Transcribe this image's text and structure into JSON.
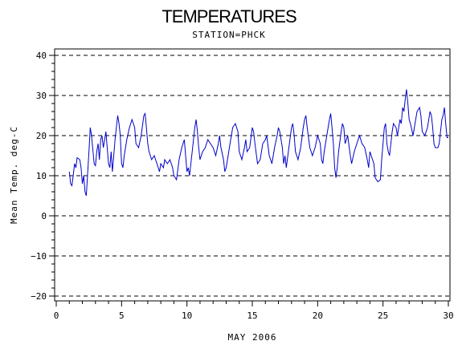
{
  "chart_data": {
    "type": "line",
    "title": "TEMPERATURES",
    "subtitle": "STATION=PHCK",
    "xlabel": "MAY 2006",
    "ylabel": "Mean Temp. deg-C",
    "xlim": [
      0,
      30
    ],
    "ylim": [
      -20,
      40
    ],
    "x_major_ticks": [
      0,
      5,
      10,
      15,
      20,
      25,
      30
    ],
    "y_major_ticks": [
      -20,
      -10,
      0,
      10,
      20,
      30,
      40
    ],
    "y_tick_labels": [
      "−20",
      "−10",
      "0",
      "10",
      "20",
      "30",
      "40"
    ],
    "x_tick_labels": [
      "0",
      "5",
      "10",
      "15",
      "20",
      "25",
      "30"
    ],
    "grid": "horizontal dashed at major y ticks",
    "line_color": "#0000cc",
    "series": [
      {
        "values": [
          [
            1.0,
            11
          ],
          [
            1.1,
            8
          ],
          [
            1.2,
            7.5
          ],
          [
            1.3,
            10
          ],
          [
            1.4,
            13
          ],
          [
            1.5,
            12
          ],
          [
            1.6,
            14.5
          ],
          [
            1.8,
            14
          ],
          [
            1.9,
            12
          ],
          [
            2.0,
            8
          ],
          [
            2.1,
            10
          ],
          [
            2.2,
            6
          ],
          [
            2.3,
            5
          ],
          [
            2.5,
            16
          ],
          [
            2.6,
            22
          ],
          [
            2.7,
            20
          ],
          [
            2.9,
            13
          ],
          [
            3.0,
            12.5
          ],
          [
            3.1,
            16
          ],
          [
            3.2,
            18
          ],
          [
            3.3,
            14
          ],
          [
            3.4,
            19
          ],
          [
            3.5,
            20
          ],
          [
            3.6,
            17
          ],
          [
            3.8,
            21
          ],
          [
            3.9,
            17
          ],
          [
            4.0,
            13
          ],
          [
            4.1,
            12
          ],
          [
            4.2,
            16
          ],
          [
            4.3,
            11
          ],
          [
            4.5,
            19
          ],
          [
            4.6,
            22
          ],
          [
            4.7,
            25
          ],
          [
            4.8,
            23
          ],
          [
            4.9,
            20
          ],
          [
            5.0,
            13
          ],
          [
            5.1,
            12
          ],
          [
            5.2,
            15
          ],
          [
            5.4,
            19
          ],
          [
            5.6,
            22
          ],
          [
            5.8,
            24
          ],
          [
            6.0,
            22
          ],
          [
            6.1,
            18
          ],
          [
            6.3,
            17
          ],
          [
            6.5,
            20
          ],
          [
            6.7,
            25
          ],
          [
            6.8,
            25.5
          ],
          [
            6.9,
            22
          ],
          [
            7.0,
            18
          ],
          [
            7.1,
            16
          ],
          [
            7.3,
            14
          ],
          [
            7.5,
            15
          ],
          [
            7.7,
            13
          ],
          [
            7.9,
            11
          ],
          [
            8.0,
            13
          ],
          [
            8.2,
            12
          ],
          [
            8.3,
            14
          ],
          [
            8.5,
            13
          ],
          [
            8.7,
            14
          ],
          [
            8.9,
            12
          ],
          [
            9.0,
            10
          ],
          [
            9.2,
            9
          ],
          [
            9.4,
            14
          ],
          [
            9.6,
            17
          ],
          [
            9.8,
            19
          ],
          [
            9.9,
            15
          ],
          [
            10.0,
            11
          ],
          [
            10.1,
            12
          ],
          [
            10.2,
            10
          ],
          [
            10.4,
            16
          ],
          [
            10.5,
            19
          ],
          [
            10.6,
            22
          ],
          [
            10.7,
            24
          ],
          [
            10.8,
            21
          ],
          [
            10.9,
            17
          ],
          [
            11.0,
            14
          ],
          [
            11.2,
            16
          ],
          [
            11.4,
            17
          ],
          [
            11.6,
            19
          ],
          [
            11.8,
            18
          ],
          [
            12.0,
            17
          ],
          [
            12.2,
            15
          ],
          [
            12.4,
            18
          ],
          [
            12.5,
            20
          ],
          [
            12.6,
            17
          ],
          [
            12.8,
            14
          ],
          [
            12.9,
            11
          ],
          [
            13.0,
            12
          ],
          [
            13.1,
            14
          ],
          [
            13.3,
            18
          ],
          [
            13.5,
            22
          ],
          [
            13.7,
            23
          ],
          [
            13.9,
            21
          ],
          [
            14.0,
            16
          ],
          [
            14.2,
            14
          ],
          [
            14.4,
            17
          ],
          [
            14.5,
            19
          ],
          [
            14.6,
            16
          ],
          [
            14.8,
            17
          ],
          [
            15.0,
            22
          ],
          [
            15.1,
            21
          ],
          [
            15.2,
            18
          ],
          [
            15.4,
            13
          ],
          [
            15.6,
            14
          ],
          [
            15.8,
            18
          ],
          [
            16.0,
            19
          ],
          [
            16.1,
            20
          ],
          [
            16.3,
            15
          ],
          [
            16.5,
            13
          ],
          [
            16.7,
            17
          ],
          [
            16.9,
            20
          ],
          [
            17.0,
            22
          ],
          [
            17.1,
            21
          ],
          [
            17.3,
            17
          ],
          [
            17.4,
            13
          ],
          [
            17.5,
            15
          ],
          [
            17.6,
            12
          ],
          [
            17.8,
            17
          ],
          [
            18.0,
            22
          ],
          [
            18.1,
            23
          ],
          [
            18.2,
            20
          ],
          [
            18.3,
            16
          ],
          [
            18.5,
            14
          ],
          [
            18.7,
            17
          ],
          [
            18.9,
            22
          ],
          [
            19.0,
            24
          ],
          [
            19.1,
            25
          ],
          [
            19.2,
            22
          ],
          [
            19.4,
            17
          ],
          [
            19.6,
            15
          ],
          [
            19.8,
            17
          ],
          [
            20.0,
            20
          ],
          [
            20.2,
            18
          ],
          [
            20.3,
            14
          ],
          [
            20.4,
            13
          ],
          [
            20.5,
            16
          ],
          [
            20.7,
            20
          ],
          [
            20.9,
            24
          ],
          [
            21.0,
            25.5
          ],
          [
            21.1,
            22
          ],
          [
            21.2,
            18
          ],
          [
            21.3,
            12
          ],
          [
            21.4,
            9.5
          ],
          [
            21.5,
            12
          ],
          [
            21.6,
            16
          ],
          [
            21.8,
            21
          ],
          [
            21.9,
            23
          ],
          [
            22.0,
            22
          ],
          [
            22.1,
            18
          ],
          [
            22.3,
            20
          ],
          [
            22.5,
            15
          ],
          [
            22.6,
            13
          ],
          [
            22.8,
            16
          ],
          [
            23.0,
            18
          ],
          [
            23.2,
            20
          ],
          [
            23.4,
            18
          ],
          [
            23.6,
            17
          ],
          [
            23.8,
            14
          ],
          [
            23.9,
            12
          ],
          [
            24.0,
            16
          ],
          [
            24.1,
            15
          ],
          [
            24.3,
            13
          ],
          [
            24.4,
            9.5
          ],
          [
            24.6,
            8.5
          ],
          [
            24.8,
            9
          ],
          [
            24.9,
            14
          ],
          [
            25.0,
            18
          ],
          [
            25.1,
            22
          ],
          [
            25.2,
            23
          ],
          [
            25.3,
            18
          ],
          [
            25.4,
            16
          ],
          [
            25.5,
            15
          ],
          [
            25.7,
            21
          ],
          [
            25.8,
            23
          ],
          [
            26.0,
            22
          ],
          [
            26.1,
            20
          ],
          [
            26.3,
            24
          ],
          [
            26.4,
            23
          ],
          [
            26.5,
            27
          ],
          [
            26.6,
            26
          ],
          [
            26.7,
            29
          ],
          [
            26.8,
            31.5
          ],
          [
            26.9,
            28
          ],
          [
            27.0,
            24
          ],
          [
            27.1,
            23
          ],
          [
            27.3,
            20
          ],
          [
            27.4,
            22
          ],
          [
            27.6,
            26
          ],
          [
            27.8,
            27
          ],
          [
            27.9,
            25
          ],
          [
            28.0,
            21
          ],
          [
            28.2,
            20
          ],
          [
            28.4,
            22
          ],
          [
            28.6,
            26
          ],
          [
            28.7,
            25
          ],
          [
            28.8,
            22
          ],
          [
            28.9,
            18
          ],
          [
            29.0,
            17
          ],
          [
            29.2,
            17
          ],
          [
            29.3,
            18
          ],
          [
            29.5,
            24
          ],
          [
            29.6,
            25
          ],
          [
            29.7,
            27
          ],
          [
            29.8,
            23
          ],
          [
            29.9,
            19.5
          ],
          [
            30.0,
            19.5
          ]
        ]
      }
    ]
  }
}
